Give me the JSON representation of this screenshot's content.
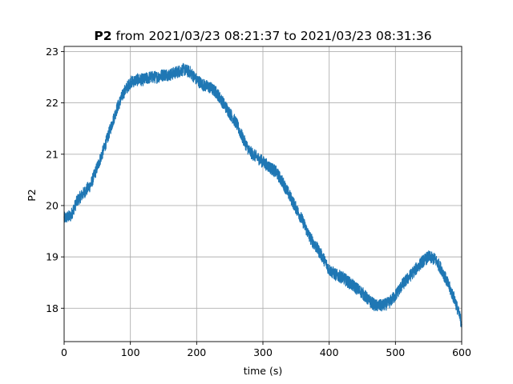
{
  "chart_data": {
    "type": "line",
    "title_bold": "P2",
    "title_rest": " from 2021/03/23 08:21:37 to 2021/03/23 08:31:36",
    "xlabel": "time (s)",
    "ylabel": "P2",
    "xlim": [
      0,
      600
    ],
    "ylim": [
      17.35,
      23.1
    ],
    "xticks": [
      0,
      100,
      200,
      300,
      400,
      500,
      600
    ],
    "yticks": [
      18,
      19,
      20,
      21,
      22,
      23
    ],
    "grid": true,
    "color": "#1f77b4",
    "noise_amplitude": 0.12,
    "series": [
      {
        "x": [
          0,
          10,
          20,
          30,
          40,
          50,
          60,
          70,
          80,
          90,
          100,
          110,
          120,
          130,
          140,
          150,
          160,
          170,
          180,
          190,
          200,
          210,
          220,
          230,
          240,
          250,
          260,
          270,
          280,
          290,
          300,
          310,
          320,
          330,
          340,
          350,
          360,
          370,
          380,
          390,
          400,
          410,
          420,
          430,
          440,
          450,
          460,
          470,
          480,
          490,
          500,
          510,
          520,
          530,
          540,
          550,
          560,
          570,
          580,
          590,
          600
        ],
        "y": [
          19.75,
          19.8,
          20.1,
          20.25,
          20.4,
          20.75,
          21.1,
          21.5,
          21.9,
          22.2,
          22.4,
          22.45,
          22.45,
          22.5,
          22.5,
          22.55,
          22.55,
          22.6,
          22.65,
          22.6,
          22.45,
          22.35,
          22.3,
          22.2,
          22.0,
          21.8,
          21.6,
          21.3,
          21.05,
          20.95,
          20.85,
          20.75,
          20.65,
          20.45,
          20.2,
          19.95,
          19.7,
          19.4,
          19.2,
          19.0,
          18.75,
          18.65,
          18.6,
          18.5,
          18.4,
          18.3,
          18.15,
          18.05,
          18.05,
          18.1,
          18.25,
          18.45,
          18.6,
          18.75,
          18.9,
          19.0,
          18.95,
          18.75,
          18.45,
          18.15,
          17.7
        ]
      }
    ]
  }
}
